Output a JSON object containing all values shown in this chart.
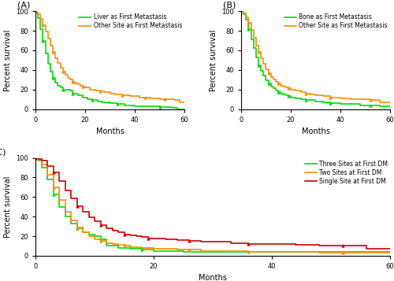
{
  "panel_A": {
    "title": "(A)",
    "xlabel": "Months",
    "ylabel": "Percent survival",
    "xlim": [
      0,
      60
    ],
    "ylim": [
      0,
      100
    ],
    "xticks": [
      0,
      20,
      40,
      60
    ],
    "yticks": [
      0,
      20,
      40,
      60,
      80,
      100
    ],
    "curves": [
      {
        "label": "Liver as First Metastasis",
        "color": "#00dd00",
        "x": [
          0,
          0.5,
          1,
          2,
          3,
          4,
          5,
          6,
          7,
          8,
          9,
          10,
          11,
          12,
          13,
          14,
          15,
          17,
          19,
          21,
          23,
          25,
          27,
          30,
          33,
          36,
          40,
          45,
          50,
          55,
          57
        ],
        "y": [
          100,
          98,
          93,
          82,
          70,
          57,
          46,
          38,
          32,
          27,
          24,
          22,
          20,
          20,
          20,
          19,
          16,
          14,
          12,
          10,
          9,
          8,
          7,
          6,
          5,
          4,
          3,
          3,
          2,
          1,
          0
        ]
      },
      {
        "label": "Other Site as First Metastasis",
        "color": "#ff8c00",
        "x": [
          0,
          0.5,
          1,
          2,
          3,
          4,
          5,
          6,
          7,
          8,
          9,
          10,
          11,
          12,
          13,
          14,
          15,
          16,
          17,
          18,
          19,
          20,
          22,
          24,
          26,
          28,
          30,
          32,
          35,
          38,
          40,
          42,
          44,
          46,
          48,
          50,
          52,
          54,
          56,
          58
        ],
        "y": [
          100,
          99,
          97,
          92,
          86,
          79,
          72,
          65,
          58,
          52,
          47,
          42,
          38,
          35,
          32,
          30,
          28,
          26,
          25,
          24,
          23,
          22,
          20,
          19,
          18,
          17,
          16,
          15,
          14,
          13,
          13,
          12,
          12,
          11,
          11,
          10,
          10,
          10,
          9,
          7
        ]
      }
    ]
  },
  "panel_B": {
    "title": "(B)",
    "xlabel": "Months",
    "ylabel": "Percent survival",
    "xlim": [
      0,
      60
    ],
    "ylim": [
      0,
      100
    ],
    "xticks": [
      0,
      20,
      40,
      60
    ],
    "yticks": [
      0,
      20,
      40,
      60,
      80,
      100
    ],
    "curves": [
      {
        "label": "Bone as First Metastasis",
        "color": "#00dd00",
        "x": [
          0,
          0.5,
          1,
          2,
          3,
          4,
          5,
          6,
          7,
          8,
          9,
          10,
          11,
          12,
          13,
          14,
          15,
          16,
          17,
          18,
          19,
          20,
          22,
          24,
          26,
          28,
          30,
          33,
          36,
          40,
          44,
          48,
          52,
          56
        ],
        "y": [
          100,
          99,
          97,
          91,
          82,
          71,
          62,
          53,
          45,
          39,
          34,
          29,
          26,
          23,
          21,
          19,
          17,
          16,
          15,
          14,
          13,
          12,
          11,
          10,
          9,
          9,
          8,
          7,
          6,
          5,
          5,
          4,
          4,
          3
        ]
      },
      {
        "label": "Other Site as First Metastasis",
        "color": "#ff8c00",
        "x": [
          0,
          0.5,
          1,
          2,
          3,
          4,
          5,
          6,
          7,
          8,
          9,
          10,
          11,
          12,
          13,
          14,
          15,
          16,
          17,
          18,
          19,
          20,
          22,
          24,
          26,
          28,
          30,
          33,
          36,
          40,
          44,
          48,
          52,
          56
        ],
        "y": [
          100,
          99,
          98,
          94,
          88,
          81,
          73,
          65,
          58,
          52,
          46,
          41,
          37,
          33,
          30,
          28,
          26,
          24,
          23,
          22,
          21,
          20,
          19,
          17,
          16,
          15,
          14,
          13,
          12,
          11,
          10,
          10,
          9,
          7
        ]
      }
    ]
  },
  "panel_C": {
    "title": "(C)",
    "xlabel": "Months",
    "ylabel": "Percent survival",
    "xlim": [
      0,
      60
    ],
    "ylim": [
      0,
      100
    ],
    "xticks": [
      0,
      20,
      40,
      60
    ],
    "yticks": [
      0,
      20,
      40,
      60,
      80,
      100
    ],
    "curves": [
      {
        "label": "Three Sites at First DM",
        "color": "#00dd00",
        "x": [
          0,
          0.5,
          1,
          2,
          3,
          4,
          5,
          6,
          7,
          8,
          9,
          10,
          11,
          12,
          14,
          16,
          18,
          20,
          22,
          25
        ],
        "y": [
          100,
          97,
          90,
          78,
          63,
          50,
          40,
          33,
          28,
          24,
          22,
          20,
          17,
          10,
          8,
          7,
          6,
          5,
          5,
          4
        ]
      },
      {
        "label": "Two Sites at First DM",
        "color": "#ff8c00",
        "x": [
          0,
          0.5,
          1,
          2,
          3,
          4,
          5,
          6,
          7,
          8,
          9,
          10,
          11,
          12,
          13,
          14,
          15,
          16,
          17,
          18,
          19,
          20,
          22,
          24,
          26,
          28,
          30,
          33,
          36,
          40,
          44,
          48,
          52,
          56
        ],
        "y": [
          100,
          98,
          93,
          83,
          70,
          57,
          45,
          36,
          29,
          24,
          20,
          17,
          15,
          13,
          12,
          11,
          10,
          9,
          9,
          8,
          8,
          7,
          7,
          6,
          6,
          5,
          5,
          5,
          4,
          4,
          4,
          3,
          3,
          3
        ]
      },
      {
        "label": "Single Site at First DM",
        "color": "#cc0000",
        "x": [
          0,
          0.5,
          1,
          2,
          3,
          4,
          5,
          6,
          7,
          8,
          9,
          10,
          11,
          12,
          13,
          14,
          15,
          16,
          17,
          18,
          19,
          20,
          22,
          24,
          26,
          28,
          30,
          33,
          36,
          40,
          44,
          48,
          52,
          56
        ],
        "y": [
          100,
          99,
          97,
          92,
          85,
          76,
          67,
          59,
          51,
          45,
          39,
          35,
          31,
          28,
          26,
          24,
          22,
          21,
          20,
          19,
          18,
          18,
          17,
          16,
          15,
          14,
          14,
          13,
          12,
          12,
          11,
          10,
          10,
          7
        ]
      }
    ]
  },
  "figure_bg": "#ffffff",
  "axes_bg": "#ffffff",
  "linewidth": 1.2,
  "marker": "^",
  "markersize": 2.5,
  "legend_fontsize": 5.5,
  "axis_fontsize": 7,
  "tick_fontsize": 6,
  "title_fontsize": 8
}
